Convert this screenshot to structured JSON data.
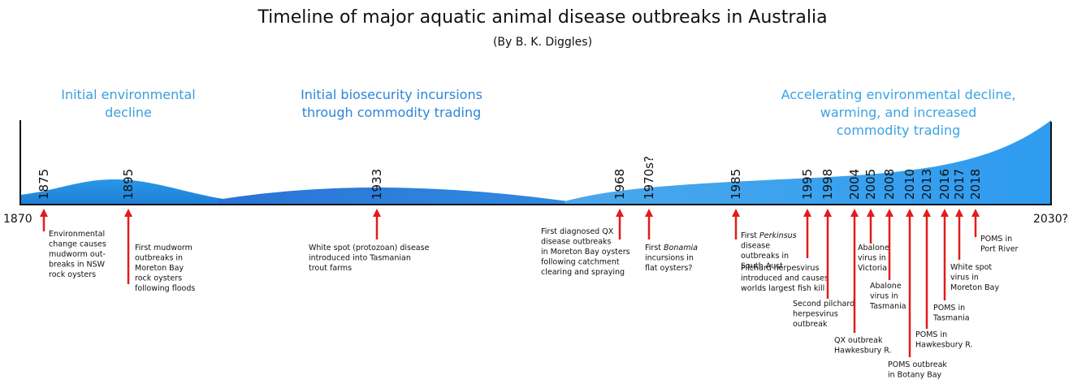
{
  "title": "Timeline of major aquatic animal disease outbreaks in Australia",
  "subtitle": "(By B. K. Diggles)",
  "eras": [
    {
      "lines": [
        "Initial environmental",
        "decline"
      ]
    },
    {
      "lines": [
        "Initial biosecurity incursions",
        "through commodity trading"
      ]
    },
    {
      "lines": [
        "Accelerating environmental decline,",
        "warming, and increased",
        "commodity trading"
      ]
    }
  ],
  "axis": {
    "start": "1870",
    "end": "2030?"
  },
  "events": [
    {
      "year": "1875",
      "lines": [
        [
          "Environmental"
        ],
        [
          "change causes"
        ],
        [
          "mudworm out-"
        ],
        [
          "breaks in NSW"
        ],
        [
          "rock oysters"
        ]
      ]
    },
    {
      "year": "1895",
      "lines": [
        [
          "First mudworm"
        ],
        [
          "outbreaks in"
        ],
        [
          "Moreton Bay"
        ],
        [
          "rock oysters"
        ],
        [
          "following floods"
        ]
      ]
    },
    {
      "year": "1933",
      "lines": [
        [
          "White spot (protozoan) disease"
        ],
        [
          "introduced into Tasmanian"
        ],
        [
          "trout farms"
        ]
      ]
    },
    {
      "year": "1968",
      "lines": [
        [
          "First diagnosed QX"
        ],
        [
          "disease outbreaks"
        ],
        [
          "in Moreton Bay oysters"
        ],
        [
          "following catchment"
        ],
        [
          "clearing and spraying"
        ]
      ]
    },
    {
      "year": "1970s?",
      "lines": [
        [
          "First ",
          "Bonamia"
        ],
        [
          "incursions in"
        ],
        [
          "flat oysters?"
        ]
      ]
    },
    {
      "year": "1985",
      "lines": [
        [
          "First ",
          "Perkinsus"
        ],
        [
          "disease"
        ],
        [
          "outbreaks in"
        ],
        [
          "South Aust"
        ]
      ]
    },
    {
      "year": "1995",
      "lines": [
        [
          "Pilchard herpesvirus"
        ],
        [
          "introduced and causes"
        ],
        [
          "worlds largest fish kill"
        ]
      ]
    },
    {
      "year": "1998",
      "lines": [
        [
          "Second pilchard"
        ],
        [
          "herpesvirus"
        ],
        [
          "outbreak"
        ]
      ]
    },
    {
      "year": "2004",
      "lines": [
        [
          "QX outbreak"
        ],
        [
          "Hawkesbury R."
        ]
      ]
    },
    {
      "year": "2005",
      "lines": [
        [
          "Abalone"
        ],
        [
          "virus in"
        ],
        [
          "Victoria"
        ]
      ]
    },
    {
      "year": "2008",
      "lines": [
        [
          "Abalone"
        ],
        [
          "virus in"
        ],
        [
          "Tasmania"
        ]
      ]
    },
    {
      "year": "2010",
      "lines": [
        [
          "POMS outbreak"
        ],
        [
          "in Botany Bay"
        ]
      ]
    },
    {
      "year": "2013",
      "lines": [
        [
          "POMS in"
        ],
        [
          "Hawkesbury R."
        ]
      ]
    },
    {
      "year": "2016",
      "lines": [
        [
          "POMS in"
        ],
        [
          "Tasmania"
        ]
      ]
    },
    {
      "year": "2017",
      "lines": [
        [
          "White spot"
        ],
        [
          "virus in"
        ],
        [
          "Moreton Bay"
        ]
      ]
    },
    {
      "year": "2018",
      "lines": [
        [
          "POMS in"
        ],
        [
          "Port River"
        ]
      ]
    }
  ]
}
